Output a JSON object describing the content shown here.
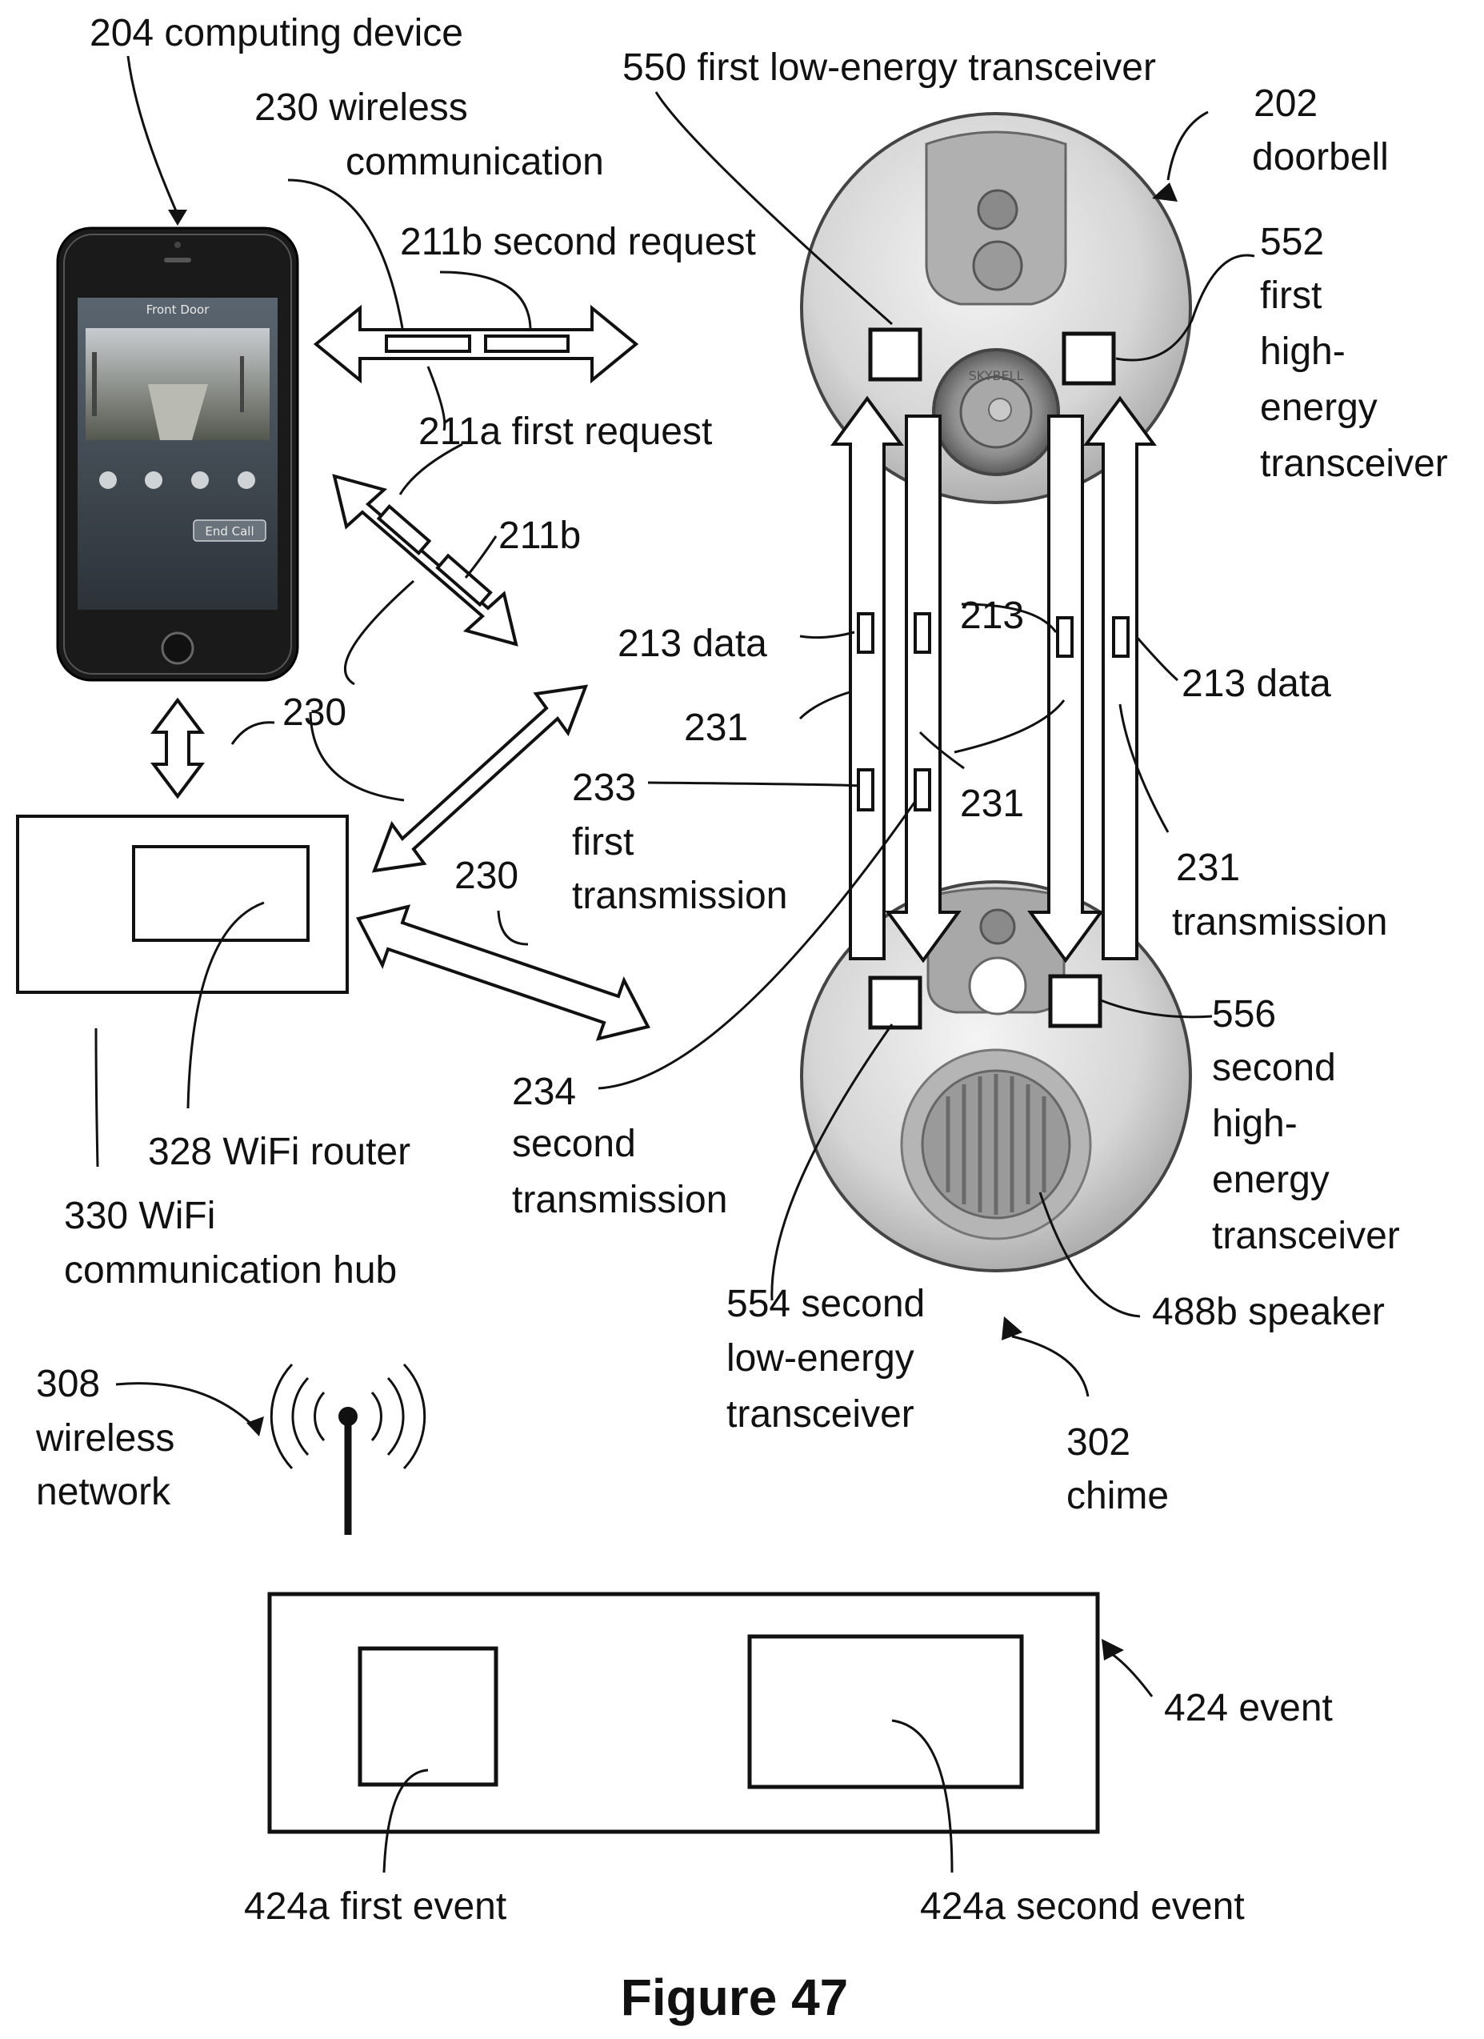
{
  "figure_title": "Figure 47",
  "labels": {
    "computing_device": "204 computing device",
    "wireless_comm_1": "230 wireless",
    "wireless_comm_2": "communication",
    "second_request": "211b second request",
    "first_request": "211a  first request",
    "r211b": "211b",
    "n230_a": "230",
    "n230_b": "230",
    "first_le_transceiver": "550 first low-energy transceiver",
    "doorbell_num": "202",
    "doorbell": "doorbell",
    "first_he_1": "552",
    "first_he_2": "first",
    "first_he_3": "high-",
    "first_he_4": "energy",
    "first_he_5": "transceiver",
    "data_213_left": "213 data",
    "data_213_mid": "213",
    "data_213_right": "213 data",
    "t231_left": "231",
    "t231_mid": "231",
    "t231_right_1": "231",
    "t231_right_2": "transmission",
    "first_tx_1": "233",
    "first_tx_2": "first",
    "first_tx_3": "transmission",
    "second_tx_1": "234",
    "second_tx_2": "second",
    "second_tx_3": "transmission",
    "second_he_1": "556",
    "second_he_2": "second",
    "second_he_3": "high-",
    "second_he_4": "energy",
    "second_he_5": "transceiver",
    "wifi_router": "328 WiFi router",
    "wifi_hub_1": "330 WiFi",
    "wifi_hub_2": "communication hub",
    "second_le_1": "554 second",
    "second_le_2": "low-energy",
    "second_le_3": "transceiver",
    "speaker": "488b speaker",
    "chime_num": "302",
    "chime": "chime",
    "wireless_net_1": "308",
    "wireless_net_2": "wireless",
    "wireless_net_3": "network",
    "event": "424 event",
    "first_event": "424a first event",
    "second_event": "424a second event"
  },
  "phone_screen": {
    "title": "Front Door",
    "button": "End Call"
  },
  "device_text": "SKYBELL"
}
